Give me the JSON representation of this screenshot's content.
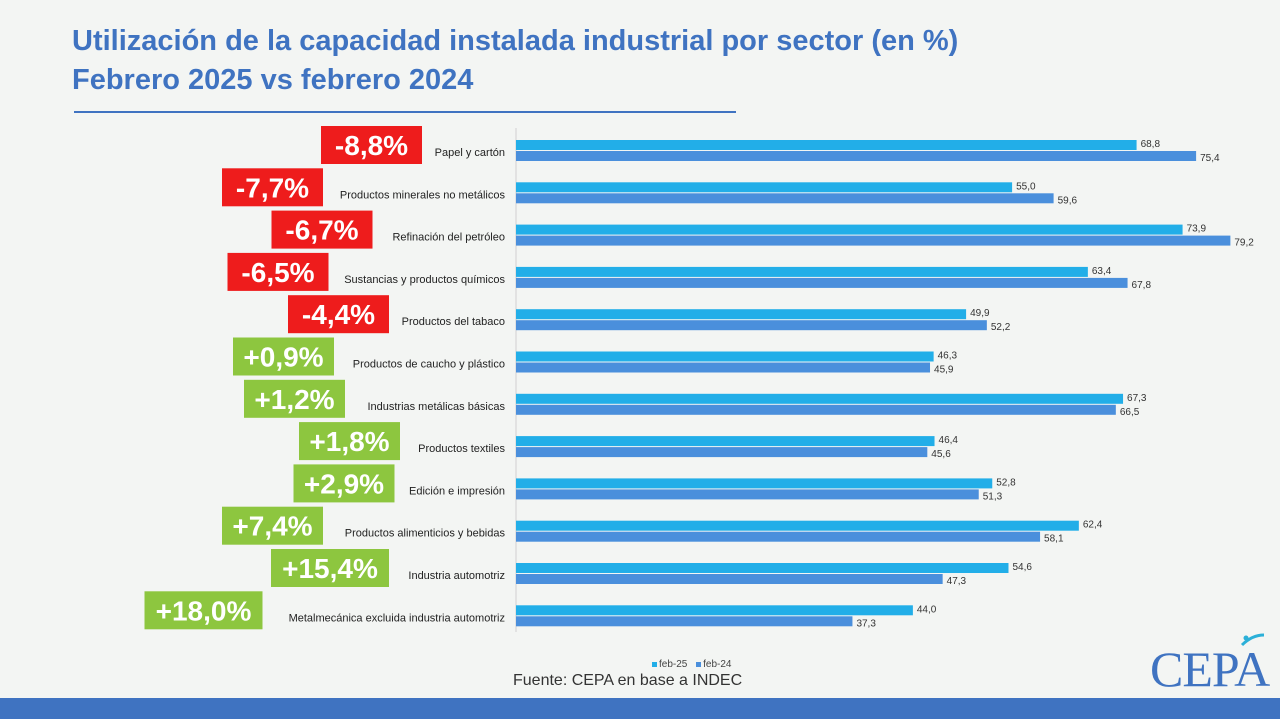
{
  "title": {
    "line1": "Utilización de la capacidad instalada industrial por sector (en %)",
    "line2": "Febrero 2025 vs febrero 2024"
  },
  "chart_data": {
    "type": "bar",
    "orientation": "horizontal",
    "categories": [
      "Papel y cartón",
      "Productos minerales no metálicos",
      "Refinación del petróleo",
      "Sustancias y productos químicos",
      "Productos del tabaco",
      "Productos de caucho y plástico",
      "Industrias metálicas básicas",
      "Productos textiles",
      "Edición e impresión",
      "Productos alimenticios y bebidas",
      "Industria automotriz",
      "Metalmecánica excluida industria automotriz"
    ],
    "series": [
      {
        "name": "feb-25",
        "color": "#22aee8",
        "values": [
          68.8,
          55.0,
          73.9,
          63.4,
          49.9,
          46.3,
          67.3,
          46.4,
          52.8,
          62.4,
          54.6,
          44.0
        ],
        "labels": [
          "68,8",
          "55,0",
          "73,9",
          "63,4",
          "49,9",
          "46,3",
          "67,3",
          "46,4",
          "52,8",
          "62,4",
          "54,6",
          "44,0"
        ]
      },
      {
        "name": "feb-24",
        "color": "#4a8fdc",
        "values": [
          75.4,
          59.6,
          79.2,
          67.8,
          52.2,
          45.9,
          66.5,
          45.6,
          51.3,
          58.1,
          47.3,
          37.3
        ],
        "labels": [
          "75,4",
          "59,6",
          "79,2",
          "67,8",
          "52,2",
          "45,9",
          "66,5",
          "45,6",
          "51,3",
          "58,1",
          "47,3",
          "37,3"
        ]
      }
    ],
    "variations": [
      "-8,8%",
      "-7,7%",
      "-6,7%",
      "-6,5%",
      "-4,4%",
      "+0,9%",
      "+1,2%",
      "+1,8%",
      "+2,9%",
      "+7,4%",
      "+15,4%",
      "+18,0%"
    ],
    "variation_sign": [
      "neg",
      "neg",
      "neg",
      "neg",
      "neg",
      "pos",
      "pos",
      "pos",
      "pos",
      "pos",
      "pos",
      "pos"
    ],
    "xlim": [
      0,
      80
    ],
    "negative_color": "#ee1c1c",
    "positive_color": "#8dc63f",
    "legend_position": "bottom"
  },
  "legend": {
    "feb25": "feb-25",
    "feb24": "feb-24"
  },
  "source": "Fuente: CEPA en base a INDEC",
  "logo": "CEPA"
}
